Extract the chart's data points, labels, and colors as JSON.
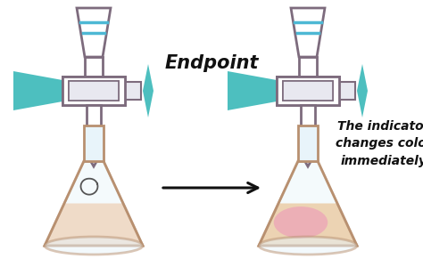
{
  "bg_color": "#ffffff",
  "burette_color": "#7d6b7d",
  "teal_color": "#4dbfbf",
  "teal_light": "#7ad4d4",
  "burette_marks": "#4db8d4",
  "flask1_liquid_color": "#f5c8a0",
  "flask2_liquid_bottom": "#f0b87a",
  "flask2_liquid_top": "#f07080",
  "flask2_liquid_mid": "#f09080",
  "flask_outline": "#b89070",
  "flask_body": "#e8f4fa",
  "drop_color": "#555555",
  "arrow_color": "#111111",
  "endpoint_text": "Endpoint",
  "indicator_text": "The indicator\nchanges color\nimmediately",
  "text_color": "#111111",
  "endpoint_fontsize": 15,
  "indicator_fontsize": 10,
  "figsize": [
    4.74,
    2.91
  ],
  "dpi": 100
}
